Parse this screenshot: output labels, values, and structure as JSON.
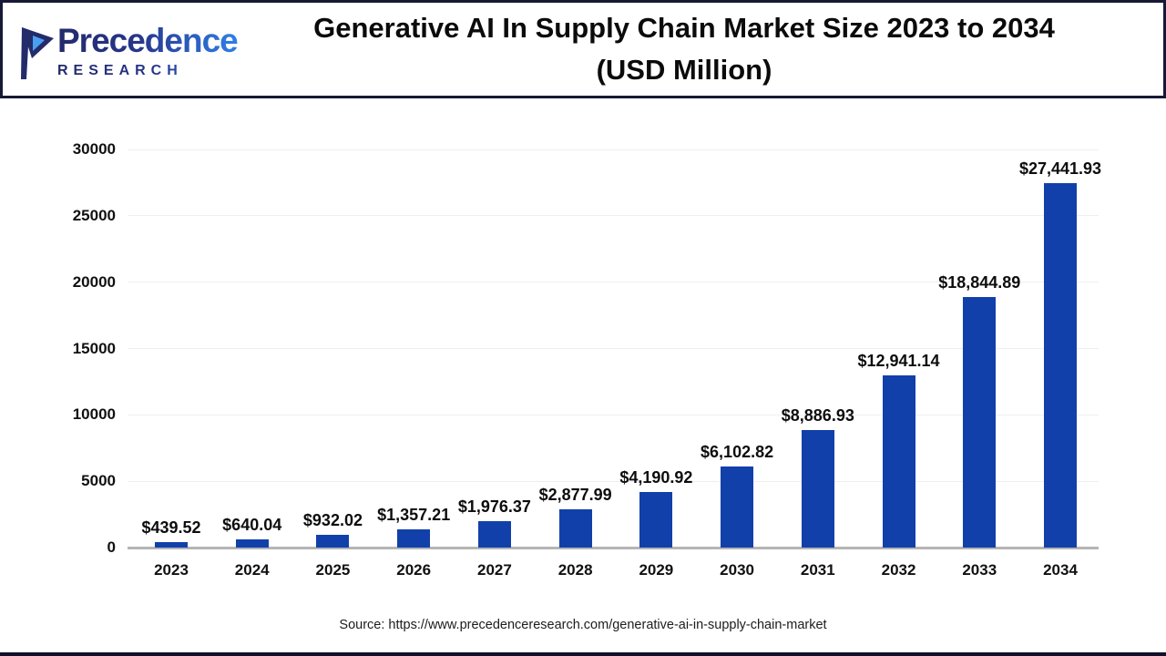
{
  "header": {
    "logo": {
      "name": "Precedence",
      "subtitle": "RESEARCH"
    },
    "title_line1": "Generative AI In Supply Chain Market Size 2023 to 2034",
    "title_line2": "(USD Million)"
  },
  "chart_data": {
    "type": "bar",
    "title": "Generative AI In Supply Chain Market Size 2023 to 2034 (USD Million)",
    "unit": "USD Million",
    "categories": [
      "2023",
      "2024",
      "2025",
      "2026",
      "2027",
      "2028",
      "2029",
      "2030",
      "2031",
      "2032",
      "2033",
      "2034"
    ],
    "values": [
      439.52,
      640.04,
      932.02,
      1357.21,
      1976.37,
      2877.99,
      4190.92,
      6102.82,
      8886.93,
      12941.14,
      18844.89,
      27441.93
    ],
    "labels": [
      "$439.52",
      "$640.04",
      "$932.02",
      "$1,357.21",
      "$1,976.37",
      "$2,877.99",
      "$4,190.92",
      "$6,102.82",
      "$8,886.93",
      "$12,941.14",
      "$18,844.89",
      "$27,441.93"
    ],
    "ylim": [
      0,
      30000
    ],
    "yticks": [
      0,
      5000,
      10000,
      15000,
      20000,
      25000,
      30000
    ],
    "grid": true,
    "legend": "none",
    "bar_color": "#1240aa"
  },
  "footer": {
    "source": "Source: https://www.precedenceresearch.com/generative-ai-in-supply-chain-market"
  },
  "colors": {
    "header_border": "#181836",
    "axis_line": "#b5b5b5",
    "gridline": "#efefef",
    "logo_navy": "#242b6b",
    "logo_blue": "#2f7fe8"
  }
}
